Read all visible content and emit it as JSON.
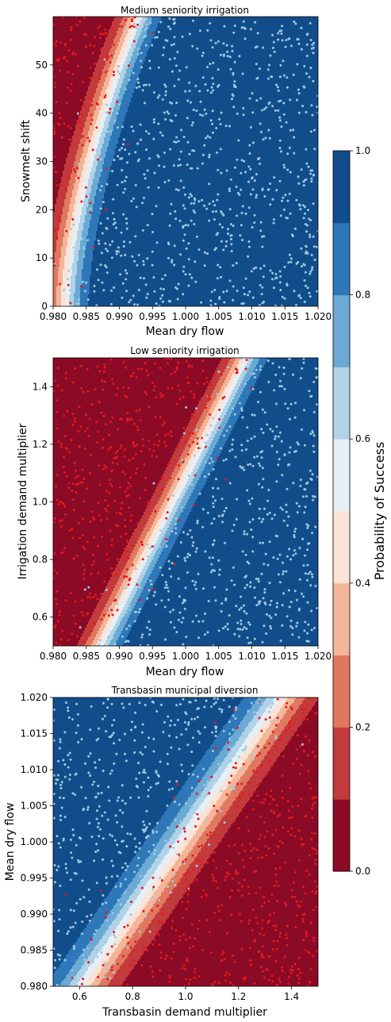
{
  "chart_data": [
    {
      "type": "contour",
      "title": "Medium seniority irrigation",
      "xlabel": "Mean dry flow",
      "ylabel": "Snowmelt shift",
      "xlim": [
        0.98,
        1.02
      ],
      "ylim": [
        0,
        60
      ],
      "xticks": [
        "0.980",
        "0.985",
        "0.990",
        "0.995",
        "1.000",
        "1.005",
        "1.010",
        "1.015",
        "1.020"
      ],
      "xtick_values": [
        0.98,
        0.985,
        0.99,
        0.995,
        1.0,
        1.005,
        1.01,
        1.015,
        1.02
      ],
      "yticks": [
        "0",
        "10",
        "20",
        "30",
        "40",
        "50"
      ],
      "ytick_values": [
        0,
        10,
        20,
        30,
        40,
        50
      ],
      "points": {
        "success_color": "#9ecae1",
        "failure_color": "#e31a1c",
        "count": 1000
      }
    },
    {
      "type": "contour",
      "title": "Low seniority irrigation",
      "xlabel": "Mean dry flow",
      "ylabel": "Irrigation demand multiplier",
      "xlim": [
        0.98,
        1.02
      ],
      "ylim": [
        0.5,
        1.5
      ],
      "xticks": [
        "0.980",
        "0.985",
        "0.990",
        "0.995",
        "1.000",
        "1.005",
        "1.010",
        "1.015",
        "1.020"
      ],
      "xtick_values": [
        0.98,
        0.985,
        0.99,
        0.995,
        1.0,
        1.005,
        1.01,
        1.015,
        1.02
      ],
      "yticks": [
        "0.6",
        "0.8",
        "1.0",
        "1.2",
        "1.4"
      ],
      "ytick_values": [
        0.6,
        0.8,
        1.0,
        1.2,
        1.4
      ],
      "points": {
        "success_color": "#9ecae1",
        "failure_color": "#e31a1c",
        "count": 1000
      }
    },
    {
      "type": "contour",
      "title": "Transbasin municipal diversion",
      "xlabel": "Transbasin demand multiplier",
      "ylabel": "Mean dry flow",
      "xlim": [
        0.5,
        1.5
      ],
      "ylim": [
        0.98,
        1.02
      ],
      "xticks": [
        "0.6",
        "0.8",
        "1.0",
        "1.2",
        "1.4"
      ],
      "xtick_values": [
        0.6,
        0.8,
        1.0,
        1.2,
        1.4
      ],
      "yticks": [
        "0.980",
        "0.985",
        "0.990",
        "0.995",
        "1.000",
        "1.005",
        "1.010",
        "1.015",
        "1.020"
      ],
      "ytick_values": [
        0.98,
        0.985,
        0.99,
        0.995,
        1.0,
        1.005,
        1.01,
        1.015,
        1.02
      ],
      "points": {
        "success_color": "#9ecae1",
        "failure_color": "#e31a1c",
        "count": 1000
      }
    }
  ],
  "colorbar": {
    "label": "Probability of Success",
    "ticks": [
      "0.0",
      "0.2",
      "0.4",
      "0.6",
      "0.8",
      "1.0"
    ],
    "tick_values": [
      0,
      0.2,
      0.4,
      0.6,
      0.8,
      1.0
    ],
    "levels": [
      0,
      0.1,
      0.2,
      0.3,
      0.4,
      0.5,
      0.6,
      0.7,
      0.8,
      0.9,
      1.0
    ],
    "colors": [
      "#8b0a26",
      "#c23a3c",
      "#e0785f",
      "#f5b598",
      "#fbe3d5",
      "#e6eff7",
      "#b2d2e7",
      "#6aaad4",
      "#2e77b8",
      "#124d8b"
    ]
  }
}
